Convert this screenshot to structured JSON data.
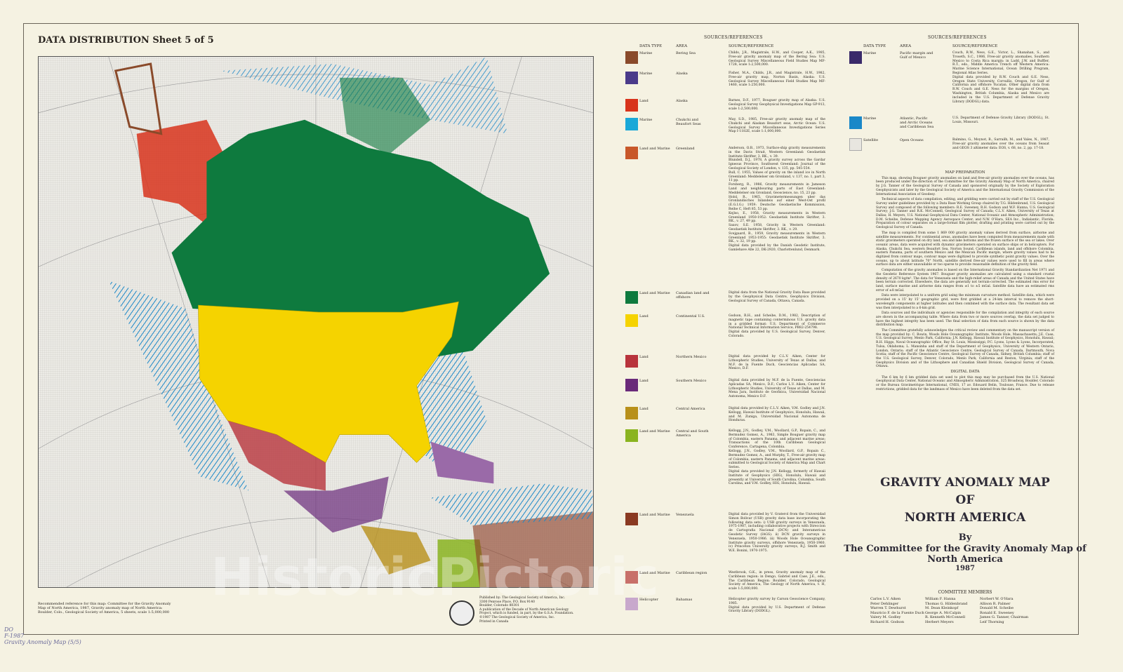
{
  "sheet_title": "DATA DISTRIBUTION Sheet 5 of 5",
  "sources_header": "SOURCES/REFERENCES",
  "columns": {
    "data_type": "DATA TYPE",
    "area": "AREA",
    "source": "SOURCE/REFERENCE"
  },
  "legend_left": [
    {
      "color": "#8a4a2a",
      "type": "Marine",
      "area": "Bering Sea",
      "ref": "Childs, J.R., Magistrale, H.W., and Cooper, A.K., 1985, Free-air gravity anomaly map of the Bering Sea: U.S. Geological Survey Miscellaneous Field Studies Map MF-1728, scale 1:2,500,000."
    },
    {
      "color": "#4a3a8a",
      "type": "Marine",
      "area": "Alaska",
      "ref": "Fisher, M.A., Childs, J.R., and Magistrale, H.W., 1982, Free-air gravity map, Norton Basin, Alaska: U.S. Geological Survey Miscellaneous Field Studies Map MF-1460, scale 1:250,000."
    },
    {
      "color": "#d8341c",
      "type": "Land",
      "area": "Alaska",
      "ref": "Barnes, D.F., 1977, Bouguer gravity map of Alaska: U.S. Geological Survey Geophysical Investigations Map GP-913, scale 1:2,500,000."
    },
    {
      "color": "#1aa8d8",
      "type": "Marine",
      "area": "Chukchi and Beaufort Seas",
      "ref": "May, S.D., 1985, Free-air gravity anomaly map of the Chukchi and Alaskan Beaufort seas, Arctic Ocean: U.S. Geological Survey Miscellaneous Investigations Series Map I-1182E, scale 1:1,000,000."
    },
    {
      "color": "#c8582a",
      "type": "Land and Marine",
      "area": "Greenland",
      "ref": "Anderson, O.B., 1973, Surface-ship gravity measurements in the Davis Strait, Western Greenland: Geodaetisk Institute Skrifter, 3. RK., v. 39.\nBlundell, D.J., 1978, A gravity survey across the Gardar Igneous Province, Southwest Greenland: Journal of the Geological Society of London, v. 135, pp. 545-554.\nBull, C. 1955, Values of gravity on the inland ice in North Greenland: Meddelelser om Gronland, v. 137, no. 1, part 3, 11 pp.\nForsberg, R., 1986, Gravity measurements in Jameson Land and neighbouring parts of East Greenland: Meddelelser om Gronland, Geoscience, no. 15, 23 pp.\nHolsl, R., 1965, Gravimetermessungen uber das Gronlandisches Inlandeis auf einer West-Ost profil (E.G.I.G.) 1959: Deutsche Geodaetische Kommission, Reihe C, Heft 85, 53 pp.\nKejlso, E., 1958, Gravity measurements in Western Greenland 1950-1952: Geodaetisk Institute Skrifter, 3. RK., v. 27, 49 pp.\nSaxov, S.E. 1958, Gravity in Western Greenland: Geodaetisk Institute Skrifter, 3. RK., v. 29.\nSvejgaard, B., 1959, Gravity measurements in Western Greenland 1953-1955: Geodaetisk Institute Skrifter, 3. RK., v. 32, 19 pp.\nDigital data provided by the Danish Geodetic Institute, Gamlehave Alle 22, DK-2920, Charlottenlund, Denmark."
    },
    {
      "color": "#0e7a3e",
      "type": "Land and Marine",
      "area": "Canadian land and offshore",
      "ref": "Digital data from the National Gravity Data Base provided by the Geophysical Data Centre, Geophysics Division, Geological Survey of Canada, Ottawa, Canada."
    },
    {
      "color": "#f5d300",
      "type": "Land",
      "area": "Continental U.S.",
      "ref": "Godson, R.H., and Scheibe, D.M., 1982, Description of magnetic tape containing conterminous U.S. gravity data in a gridded format: U.S. Department of Commerce National Technical Information Service, PB82-254798.\nDigital data provided by U.S. Geological Survey, Denver, Colorado."
    },
    {
      "color": "#b8343c",
      "type": "Land",
      "area": "Northern Mexico",
      "ref": "Digital data provided by C.L.V. Aiken, Center for Lithospheric Studies, University of Texas at Dallas, and M.F. de la Fuente Duch, Geociencias Aplicadas SA, Mexico, D.F."
    },
    {
      "color": "#6a2a7a",
      "type": "Land",
      "area": "Southern Mexico",
      "ref": "Digital data provided by M.F. de la Fuente, Geociencias Aplicadas SA, Mexico, D.F.; Carlos L.V. Aiken, Center for Lithospheric Studies, University of Texas at Dallas, and M. Mena Jara, Instituto de Geofisica, Universidad Nacional Autonoma, Mexico D.F."
    },
    {
      "color": "#b8901a",
      "type": "Land",
      "area": "Central America",
      "ref": "Digital data provided by C.L.V. Aiken, V.M. Godley and J.N. Kellogg, Hawaii Institute of Geophysics, Honolulu, Hawaii, and M. Zuniga, Universidad Nacional Autonoma de Honduras."
    },
    {
      "color": "#8ab420",
      "type": "Land and Marine",
      "area": "Central and South America",
      "ref": "Kellogg, J.N., Godley, V.M., Woollard, G.P., Ropain, C., and Bermudez Gomez, A., 1983, Simple Bouguer gravity map of Colombia, eastern Panama, and adjacent marine areas: Transactions of the 10th Caribbean Geological Conference, Cartagena, Colombia.\nKellogg, J.N., Godley, V.M., Woollard, G.P., Ropain C., Bermudez Gomez, A., and Murphy, T., Free-air gravity map of Colombia, eastern Panama, and adjacent marine areas: submitted to Geological Society of America Map and Chart Series.\nDigital data provided by J.N. Kellogg, formerly of Hawaii Institute of Geophysics (HIG), Honolulu, Hawaii and presently at University of South Carolina, Columbia, South Carolina, and V.M. Godley, HIG, Honolulu, Hawaii."
    },
    {
      "color": "#8a3a22",
      "type": "Land and Marine",
      "area": "Venezuela",
      "ref": "Digital data provided by V. Graterol from the Universidad Simon Bolivar (USB) gravity data base incorporating the following data sets: i) USB gravity surveys in Venezuela, 1975-1987, including collaborative projects with Direccion de Cartografia Nacional (DCN) and Interamericas Geodetic Survey (IAGS). ii) DCN gravity surveys in Venezuela, 1950-1986. iii) Woods Hole Oceanographic Institute gravity surveys, offshore Venezuela, 1950-1960. iv) Princeton University gravity surveys, R.J. Smith and W.E. Bonini, 1970-1975."
    },
    {
      "color": "#c8706a",
      "type": "Land and Marine",
      "area": "Caribbean region",
      "ref": "Westbrook, G.K., in press, Gravity anomaly map of the Caribbean region: in Dengo, Gabriel and Case, J.E., eds., The Caribbean Region: Boulder, Colorado, Geological Society of America, The Geology of North America, v. H, scale 1:5,000,000."
    },
    {
      "color": "#c8a8cc",
      "type": "Helicopter",
      "area": "Bahamas",
      "ref": "Helicopter gravity survey by Carson Geoscience Company, 1985.\nDigital data provided by U.S. Department of Defense Gravity Library (DODGL)."
    }
  ],
  "legend_right": [
    {
      "color": "#3a2a6a",
      "type": "Marine",
      "area": "Pacific margin and Gulf of Mexico",
      "ref": "Couch, R.W., Ness, G.E., Victor, L., Shanahan, S., and Troseth, S.C., 1986, Free-air gravity anomalies, Southern Mexico to Costa Rica margin: in Ladd, J.W. and Buffler, R.T., eds., Middle America Trench off Western America: Marine Science International, Ocean Drilling Program, Regional Atlas Series.\nDigital data provided by R.W. Couch and G.E. Ness, Oregon State University, Corvallis, Oregon, for Gulf of California and offshore Yucatan. Other digital data from R.W. Couch and G.E. Ness for the margins of Oregon, Washington, British Columbia, Alaska and Mexico are included in the U.S. Department of Defense Gravity Library (DODGL) data."
    },
    {
      "color": "#1a88c8",
      "type": "Marine",
      "area": "Atlantic, Pacific and Arctic Oceans and Caribbean Sea",
      "ref": "U.S. Department of Defense Gravity Library (DODGL), St. Louis, Missouri."
    },
    {
      "color": "#e8e6e0",
      "type": "Satellite",
      "area": "Open Oceans",
      "ref": "Balmino, G., Moynot, B., Sarrailh, M., and Vales, N., 1987, Free-air gravity anomalies over the oceans from Seasat and GEOS 3 altimeter data: EOS, v. 68, no. 2, pp. 17-18."
    }
  ],
  "map_preparation": {
    "heading": "MAP PREPARATION",
    "paragraphs": [
      "This map, showing Bouguer gravity anomalies on land and free-air gravity anomalies over the oceans, has been produced under the direction of the Committee for the Gravity Anomaly Map of North America, chaired by J.G. Tanner of the Geological Survey of Canada and sponsored originally by the Society of Exploration Geophysicists and later by the Geological Society of America and the International Gravity Commission of the International Association of Geodesy.",
      "Technical aspects of data compilation, editing, and gridding were carried out by staff of the U.S. Geological Survey under guidelines provided by a Data Base Working Group chaired by T.G. Hildenbrand, U.S. Geological Survey and composed of the following members: R.E. Sweeney, R.H. Godson and W.F. Hanna, U.S. Geological Survey; J.G. Tanner and R.K. McConnell, Geological Survey of Canada; C.L.V. Aiken, University of Texas at Dallas; H. Meyers, U.S. National Geophysical Data Center, National Oceanic and Atmospheric Administration; D.M. Scheibe, Defense Mapping Agency Aerospace Center; and N.W. O'Hara, SEA Inc., Indialantic, Florida. Preparation of colour separates on a large-format film plotter, drafting and printing were carried out by the Geological Survey of Canada.",
      "The map is compiled from some 1 869 000 gravity anomaly values derived from surface, airborne and satellite measurements. For continental areas, anomalies have been computed from measurements made with static gravimeters operated on dry land, sea and lake bottoms and the frozen surface of the sea or lakes. Over oceanic areas, data were acquired with dynamic gravimeters operated on surface ships or in helicopters. For Alaska, Chukchi Sea, western Beaufort Sea, Norton Sound, Caribbean islands, land and offshore Colombia, eastern Panama, parts of southern Mexico and the Mexican Pacific margin, where gravity values had to be digitized from contour maps, contour maps were digitized to provide synthetic point gravity values. Over the oceans, up to about latitude 70° North, satellite derived free-air values were used to fill in areas where surface data are either unavailable or too sparse to provide reasonable definition of the gravity field.",
      "Computation of the gravity anomalies is based on the International Gravity Standardization Net 1971 and the Geodetic Reference System 1967. Bouguer gravity anomalies are calculated using a standard crustal density of 2670 kg/m³. The data for Venezuela and the high-relief areas of Canada and the United States have been terrain corrected. Elsewhere, the data are generally not terrain-corrected. The estimated rms error for land, surface marine and airborne data ranges from ±1 to ±5 mGal. Satellite data have an estimated rms error of ±8 mGal.",
      "Data were interpolated to a uniform grid using the minimum curvature method. Satellite data, which were provided on a 15' by 15' geographic grid, were first gridded at a 24-km interval to remove the short-wavelength components at higher latitudes and then combined with the surface data. The resultant data set was then interpolated to a 6-km grid.",
      "Data sources and the individuals or agencies responsible for the compilation and integrity of each source are shown in the accompanying table. Where data from two or more sources overlap, the data set judged to have the highest integrity has been used. The final selection of data from each source is shown by the data distribution map.",
      "The Committee gratefully acknowledges the critical review and commentary on the manuscript version of the map provided by: C. Bowin, Woods Hole Oceanographic Institute, Woods Hole, Massachusetts; J.E. Case, U.S. Geological Survey, Menlo Park, California; J.N. Kellogg, Hawaii Institute of Geophysics, Honolulu, Hawaii; R.H. Higgs, Naval Oceanographic Office, Bay St. Louis, Mississippi; P.C. Lyons, Lyons & Lyons, Incorporated, Tulsa, Oklahoma; L. Mansinha and staff of the Department of Geophysics, University of Western Ontario, London, Ontario; staff of the Atlantic Geoscience Centre, Geological Survey of Canada, Dartmouth, Nova Scotia; staff of the Pacific Geoscience Centre, Geological Survey of Canada, Sidney, British Columbia; staff of the U.S. Geological Survey, Denver, Colorado, Menlo Park, California and Reston, Virginia; staff of the Geophysics Division and of the Lithosphere and Canadian Shield Division, Geological Survey of Canada, Ottawa."
    ]
  },
  "digital_data": {
    "heading": "DIGITAL DATA",
    "text": "The 6 km by 6 km gridded data set used to plot this map may be purchased from the U.S. National Geophysical Data Center, National Oceanic and Atmospheric Administration, 325 Broadway, Boulder, Colorado or the Bureau Gravimetrique International, CNES, 17 av. Edouard Belin, Toulouse, France. Due to release restrictions, gridded data for the landmass of Mexico have been deleted from the data set."
  },
  "title": {
    "line1": "GRAVITY ANOMALY MAP",
    "line2": "OF",
    "line3": "NORTH AMERICA",
    "by": "By",
    "committee": "The Committee for the Gravity Anomaly Map of North America",
    "year": "1987"
  },
  "committee_members": {
    "heading": "COMMITTEE MEMBERS",
    "columns": [
      [
        "Carlos L.V. Aiken",
        "Peter Dehlinger",
        "Warren T. Dewhurst",
        "Mauricio F. de la Fuente Duch",
        "Valery M. Godley",
        "Richard H. Godson"
      ],
      [
        "William F. Hanna",
        "Thomas G. Hildenbrand",
        "M. Dean Kleinkopf",
        "George A. McCalpin",
        "R. Kenneth McConnell",
        "Herbert Meyers"
      ],
      [
        "Norbert W. O'Hara",
        "Allison R. Palmer",
        "Donald M. Scheibe",
        "Ronald E. Sweeney",
        "James G. Tanner, Chairman",
        "Leif Thorning"
      ]
    ]
  },
  "recommended_reference": "Recommended reference for this map: Committee for the Gravity Anomaly Map of North America, 1987, Gravity anomaly map of North America: Boulder, Colo., Geological Society of America, 5 sheets, scale 1:5,000,000",
  "publisher": {
    "lines": [
      "Published by: The Geological Society of America, Inc.",
      "3300 Penrose Place, P.O. Box 9140",
      "Boulder, Colorado 80301",
      "A publication of the Decade of North American Geology",
      "Project, which is funded, in part, by the G.S.A. Foundation."
    ],
    "copyright": "©1987 The Geological Society of America, Inc.",
    "printed": "Printed in Canada"
  },
  "library_stamp": [
    "DO",
    "F-1987",
    "Gravity Anomaly Map (5/5)"
  ],
  "watermark": "HistoricPictoric"
}
